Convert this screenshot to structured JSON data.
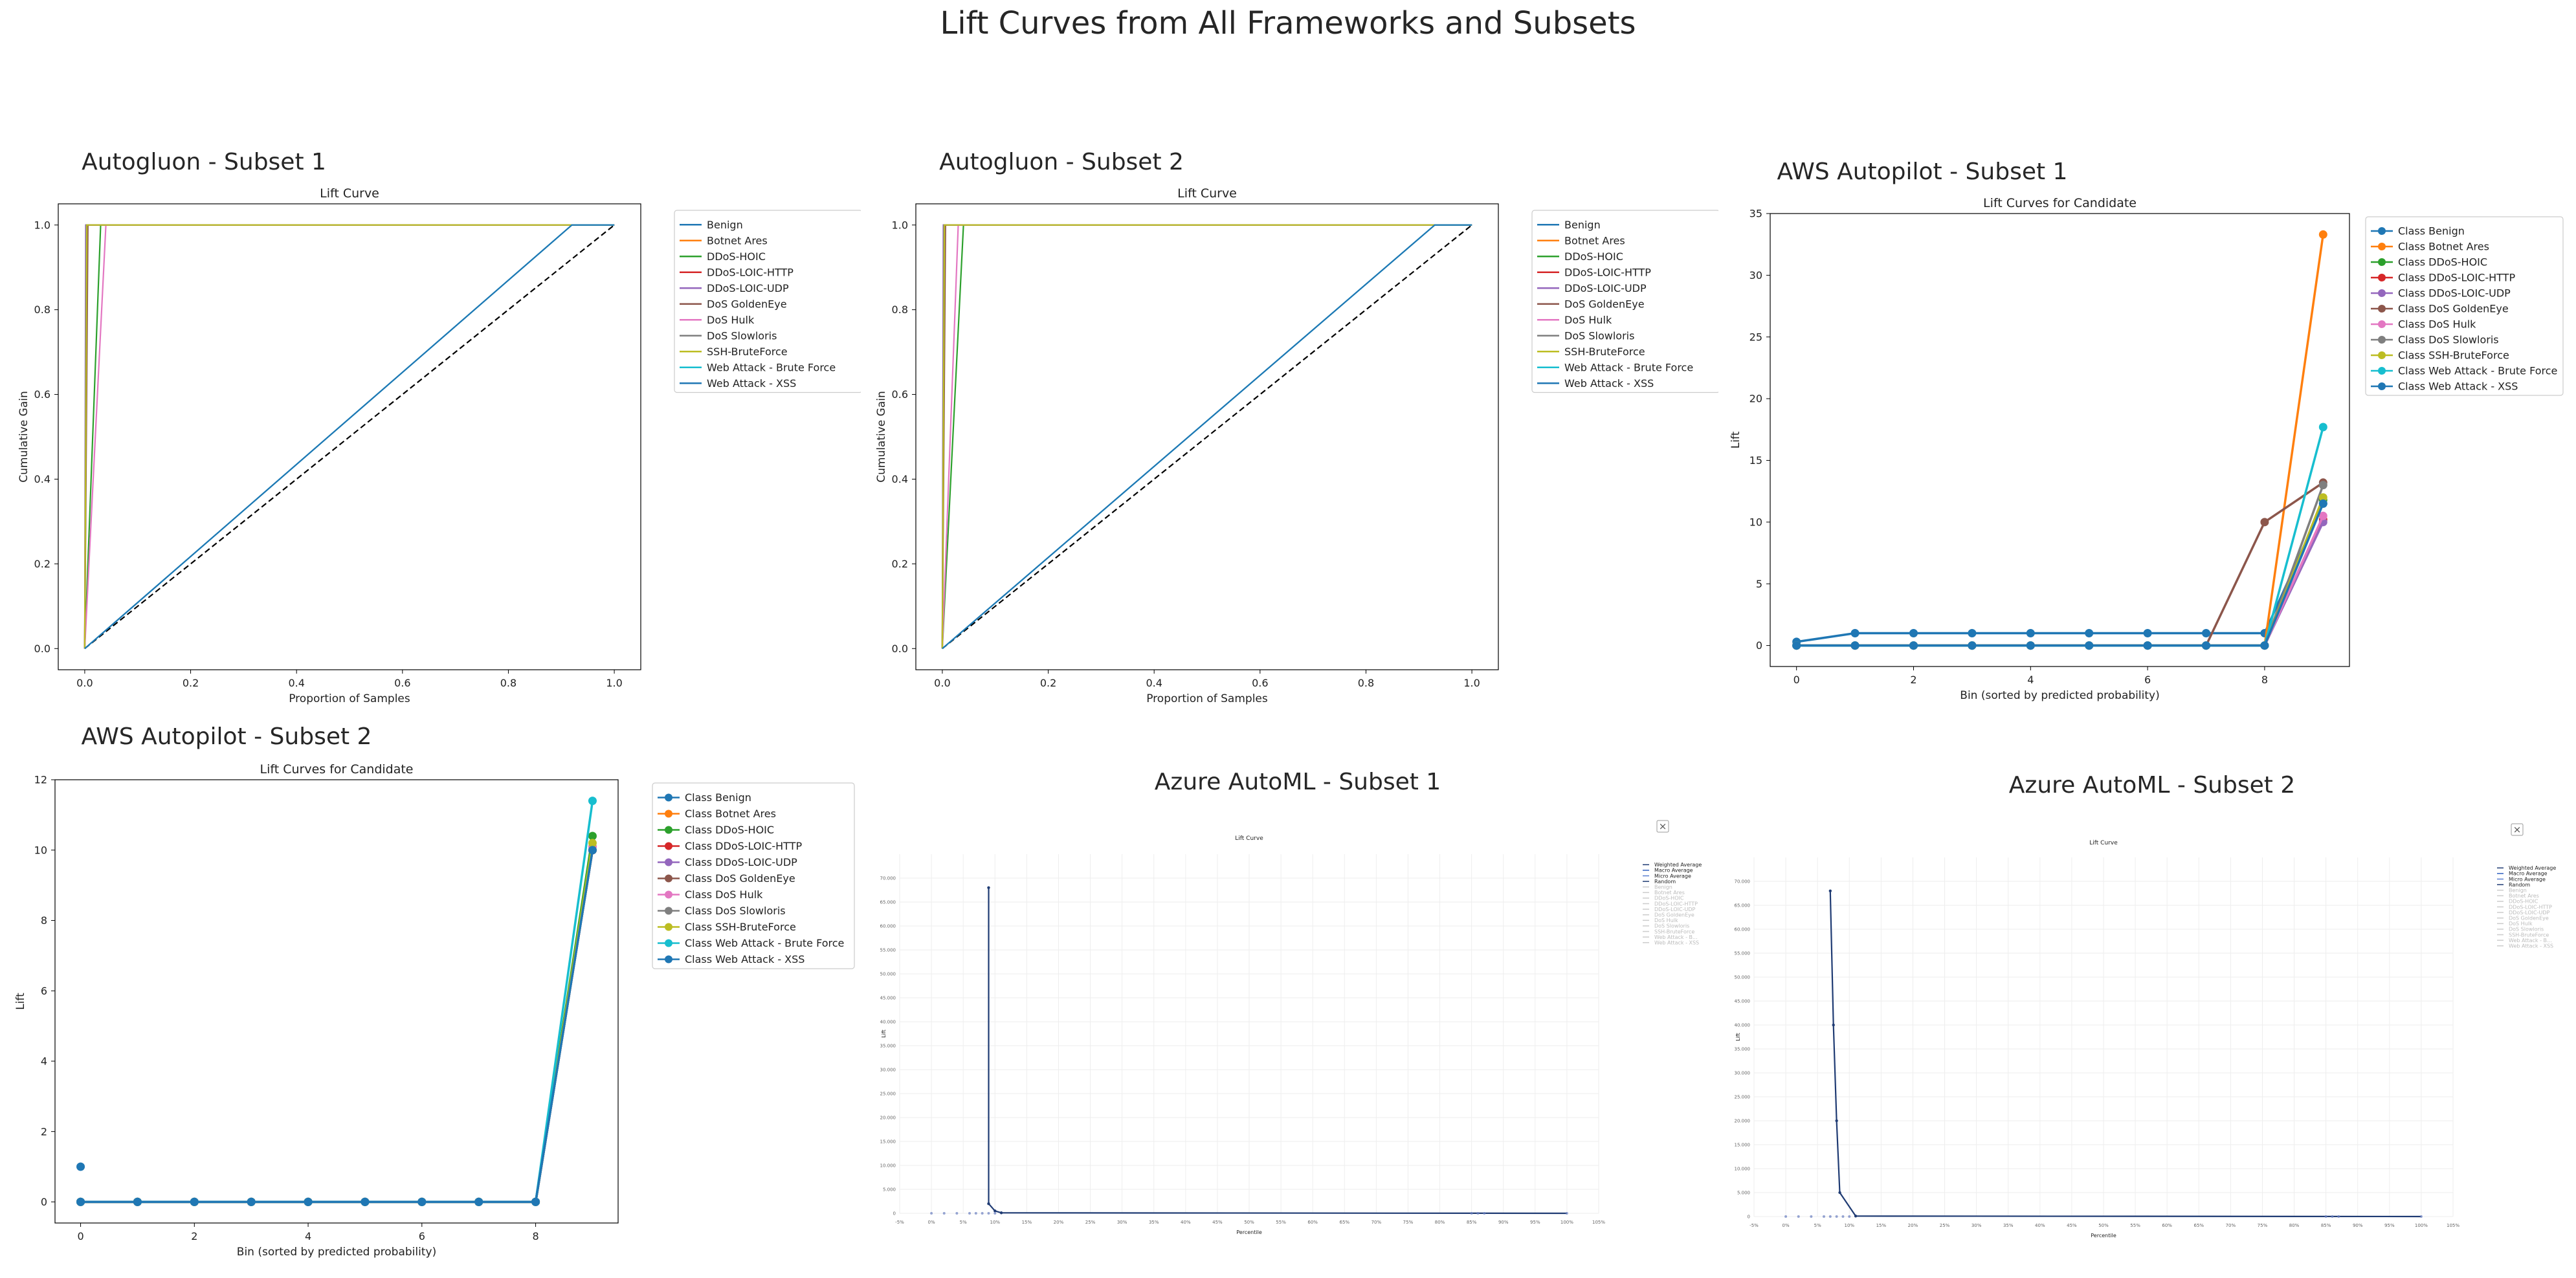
{
  "figure_title": "Lift Curves from All Frameworks and Subsets",
  "colors": {
    "benign": "#1f77b4",
    "botnet": "#ff7f0e",
    "hoic": "#2ca02c",
    "loic_http": "#d62728",
    "loic_udp": "#9467bd",
    "goldeneye": "#8c564b",
    "hulk": "#e377c2",
    "slowloris": "#7f7f7f",
    "ssh": "#bcbd22",
    "brute": "#17becf",
    "xss": "#1f77b4"
  },
  "chart_data": [
    {
      "panel_title": "Autogluon - Subset 1",
      "type": "line",
      "title": "Lift Curve",
      "xlabel": "Proportion of Samples",
      "ylabel": "Cumulative Gain",
      "xlim": [
        -0.05,
        1.05
      ],
      "ylim": [
        -0.05,
        1.05
      ],
      "xticks": [
        "0.0",
        "0.2",
        "0.4",
        "0.6",
        "0.8",
        "1.0"
      ],
      "yticks": [
        "0.0",
        "0.2",
        "0.4",
        "0.6",
        "0.8",
        "1.0"
      ],
      "legend": "upper-right-outside",
      "series": [
        {
          "name": "Benign",
          "color": "#1f77b4",
          "points": [
            [
              0,
              0
            ],
            [
              0.005,
              1
            ],
            [
              1,
              1
            ]
          ]
        },
        {
          "name": "Botnet Ares",
          "color": "#ff7f0e",
          "points": [
            [
              0,
              0
            ],
            [
              0.003,
              1
            ],
            [
              1,
              1
            ]
          ]
        },
        {
          "name": "DDoS-HOIC",
          "color": "#2ca02c",
          "points": [
            [
              0,
              0
            ],
            [
              0.03,
              1
            ],
            [
              1,
              1
            ]
          ]
        },
        {
          "name": "DDoS-LOIC-HTTP",
          "color": "#d62728",
          "points": [
            [
              0,
              0
            ],
            [
              0.004,
              1
            ],
            [
              1,
              1
            ]
          ]
        },
        {
          "name": "DDoS-LOIC-UDP",
          "color": "#9467bd",
          "points": [
            [
              0,
              0
            ],
            [
              0.002,
              1
            ],
            [
              1,
              1
            ]
          ]
        },
        {
          "name": "DoS GoldenEye",
          "color": "#8c564b",
          "points": [
            [
              0,
              0
            ],
            [
              0.006,
              1
            ],
            [
              1,
              1
            ]
          ]
        },
        {
          "name": "DoS Hulk",
          "color": "#e377c2",
          "points": [
            [
              0,
              0
            ],
            [
              0.04,
              1
            ],
            [
              1,
              1
            ]
          ]
        },
        {
          "name": "DoS Slowloris",
          "color": "#7f7f7f",
          "points": [
            [
              0,
              0
            ],
            [
              0.003,
              1
            ],
            [
              1,
              1
            ]
          ]
        },
        {
          "name": "SSH-BruteForce",
          "color": "#bcbd22",
          "points": [
            [
              0,
              0
            ],
            [
              0.004,
              1
            ],
            [
              1,
              1
            ]
          ]
        },
        {
          "name": "Web Attack - Brute Force",
          "color": "#17becf",
          "points": [
            [
              0,
              0
            ],
            [
              0.92,
              1
            ],
            [
              1,
              1
            ]
          ]
        },
        {
          "name": "Web Attack - XSS",
          "color": "#1f77b4",
          "points": [
            [
              0,
              0
            ],
            [
              0.92,
              1
            ],
            [
              1,
              1
            ]
          ]
        }
      ],
      "diagonal": true
    },
    {
      "panel_title": "Autogluon - Subset 2",
      "type": "line",
      "title": "Lift Curve",
      "xlabel": "Proportion of Samples",
      "ylabel": "Cumulative Gain",
      "xlim": [
        -0.05,
        1.05
      ],
      "ylim": [
        -0.05,
        1.05
      ],
      "xticks": [
        "0.0",
        "0.2",
        "0.4",
        "0.6",
        "0.8",
        "1.0"
      ],
      "yticks": [
        "0.0",
        "0.2",
        "0.4",
        "0.6",
        "0.8",
        "1.0"
      ],
      "legend": "upper-right-outside",
      "series": [
        {
          "name": "Benign",
          "color": "#1f77b4",
          "points": [
            [
              0,
              0
            ],
            [
              0.005,
              1
            ],
            [
              1,
              1
            ]
          ]
        },
        {
          "name": "Botnet Ares",
          "color": "#ff7f0e",
          "points": [
            [
              0,
              0
            ],
            [
              0.003,
              1
            ],
            [
              1,
              1
            ]
          ]
        },
        {
          "name": "DDoS-HOIC",
          "color": "#2ca02c",
          "points": [
            [
              0,
              0
            ],
            [
              0.04,
              1
            ],
            [
              1,
              1
            ]
          ]
        },
        {
          "name": "DDoS-LOIC-HTTP",
          "color": "#d62728",
          "points": [
            [
              0,
              0
            ],
            [
              0.004,
              1
            ],
            [
              1,
              1
            ]
          ]
        },
        {
          "name": "DDoS-LOIC-UDP",
          "color": "#9467bd",
          "points": [
            [
              0,
              0
            ],
            [
              0.002,
              1
            ],
            [
              1,
              1
            ]
          ]
        },
        {
          "name": "DoS GoldenEye",
          "color": "#8c564b",
          "points": [
            [
              0,
              0
            ],
            [
              0.006,
              1
            ],
            [
              1,
              1
            ]
          ]
        },
        {
          "name": "DoS Hulk",
          "color": "#e377c2",
          "points": [
            [
              0,
              0
            ],
            [
              0.03,
              1
            ],
            [
              1,
              1
            ]
          ]
        },
        {
          "name": "DoS Slowloris",
          "color": "#7f7f7f",
          "points": [
            [
              0,
              0
            ],
            [
              0.003,
              1
            ],
            [
              1,
              1
            ]
          ]
        },
        {
          "name": "SSH-BruteForce",
          "color": "#bcbd22",
          "points": [
            [
              0,
              0
            ],
            [
              0.004,
              1
            ],
            [
              1,
              1
            ]
          ]
        },
        {
          "name": "Web Attack - Brute Force",
          "color": "#17becf",
          "points": [
            [
              0,
              0
            ],
            [
              0.93,
              1
            ],
            [
              1,
              1
            ]
          ]
        },
        {
          "name": "Web Attack - XSS",
          "color": "#1f77b4",
          "points": [
            [
              0,
              0
            ],
            [
              0.93,
              1
            ],
            [
              1,
              1
            ]
          ]
        }
      ],
      "diagonal": true
    },
    {
      "panel_title": "AWS Autopilot - Subset 1",
      "type": "line",
      "title": "Lift Curves for Candidate",
      "xlabel": "Bin (sorted by predicted probability)",
      "ylabel": "Lift",
      "xlim": [
        -0.45,
        9.45
      ],
      "ylim": [
        -1.7,
        35
      ],
      "xticks": [
        "0",
        "2",
        "4",
        "6",
        "8"
      ],
      "yticks": [
        "0",
        "5",
        "10",
        "15",
        "20",
        "25",
        "30",
        "35"
      ],
      "legend": "upper-right-outside",
      "markers": true,
      "series": [
        {
          "name": "Class Benign",
          "color": "#1f77b4",
          "values": [
            0.3,
            1,
            1,
            1,
            1,
            1,
            1,
            1,
            1,
            11.5
          ]
        },
        {
          "name": "Class Botnet Ares",
          "color": "#ff7f0e",
          "values": [
            0,
            0,
            0,
            0,
            0,
            0,
            0,
            0,
            0,
            33.3
          ]
        },
        {
          "name": "Class DDoS-HOIC",
          "color": "#2ca02c",
          "values": [
            0,
            0,
            0,
            0,
            0,
            0,
            0,
            0,
            0,
            11.8
          ]
        },
        {
          "name": "Class DDoS-LOIC-HTTP",
          "color": "#d62728",
          "values": [
            0,
            0,
            0,
            0,
            0,
            0,
            0,
            0,
            0,
            10.2
          ]
        },
        {
          "name": "Class DDoS-LOIC-UDP",
          "color": "#9467bd",
          "values": [
            0,
            0,
            0,
            0,
            0,
            0,
            0,
            0,
            0,
            10
          ]
        },
        {
          "name": "Class DoS GoldenEye",
          "color": "#8c564b",
          "values": [
            0,
            0,
            0,
            0,
            0,
            0,
            0,
            0,
            10,
            13.2
          ]
        },
        {
          "name": "Class DoS Hulk",
          "color": "#e377c2",
          "values": [
            0,
            0,
            0,
            0,
            0,
            0,
            0,
            0,
            0,
            10.5
          ]
        },
        {
          "name": "Class DoS Slowloris",
          "color": "#7f7f7f",
          "values": [
            0,
            0,
            0,
            0,
            0,
            0,
            0,
            0,
            0,
            13
          ]
        },
        {
          "name": "Class SSH-BruteForce",
          "color": "#bcbd22",
          "values": [
            0,
            0,
            0,
            0,
            0,
            0,
            0,
            0,
            0,
            12
          ]
        },
        {
          "name": "Class Web Attack - Brute Force",
          "color": "#17becf",
          "values": [
            0,
            0,
            0,
            0,
            0,
            0,
            0,
            0,
            0,
            17.7
          ]
        },
        {
          "name": "Class Web Attack - XSS",
          "color": "#1f77b4",
          "values": [
            0,
            0,
            0,
            0,
            0,
            0,
            0,
            0,
            0,
            11.5
          ]
        }
      ]
    },
    {
      "panel_title": "AWS Autopilot - Subset 2",
      "type": "line",
      "title": "Lift Curves for Candidate",
      "xlabel": "Bin (sorted by predicted probability)",
      "ylabel": "Lift",
      "xlim": [
        -0.45,
        9.45
      ],
      "ylim": [
        -0.6,
        12
      ],
      "xticks": [
        "0",
        "2",
        "4",
        "6",
        "8"
      ],
      "yticks": [
        "0",
        "2",
        "4",
        "6",
        "8",
        "10",
        "12"
      ],
      "legend": "upper-right-outside",
      "markers": true,
      "series": [
        {
          "name": "Class Benign",
          "color": "#1f77b4",
          "values": [
            1,
            null,
            null,
            null,
            null,
            null,
            null,
            null,
            null,
            null
          ]
        },
        {
          "name": "Class Botnet Ares",
          "color": "#ff7f0e",
          "values": [
            0,
            0,
            0,
            0,
            0,
            0,
            0,
            0,
            0,
            10.1
          ]
        },
        {
          "name": "Class DDoS-HOIC",
          "color": "#2ca02c",
          "values": [
            0,
            0,
            0,
            0,
            0,
            0,
            0,
            0,
            0,
            10.4
          ]
        },
        {
          "name": "Class DDoS-LOIC-HTTP",
          "color": "#d62728",
          "values": [
            0,
            0,
            0,
            0,
            0,
            0,
            0,
            0,
            0,
            10
          ]
        },
        {
          "name": "Class DDoS-LOIC-UDP",
          "color": "#9467bd",
          "values": [
            0,
            0,
            0,
            0,
            0,
            0,
            0,
            0,
            0,
            10
          ]
        },
        {
          "name": "Class DoS GoldenEye",
          "color": "#8c564b",
          "values": [
            0,
            0,
            0,
            0,
            0,
            0,
            0,
            0,
            0,
            10
          ]
        },
        {
          "name": "Class DoS Hulk",
          "color": "#e377c2",
          "values": [
            0,
            0,
            0,
            0,
            0,
            0,
            0,
            0,
            0,
            10.1
          ]
        },
        {
          "name": "Class DoS Slowloris",
          "color": "#7f7f7f",
          "values": [
            0,
            0,
            0,
            0,
            0,
            0,
            0,
            0,
            0,
            10
          ]
        },
        {
          "name": "Class SSH-BruteForce",
          "color": "#bcbd22",
          "values": [
            0,
            0,
            0,
            0,
            0,
            0,
            0,
            0,
            0,
            10.2
          ]
        },
        {
          "name": "Class Web Attack - Brute Force",
          "color": "#17becf",
          "values": [
            0,
            0,
            0,
            0,
            0,
            0,
            0,
            0,
            0,
            11.4
          ]
        },
        {
          "name": "Class Web Attack - XSS",
          "color": "#1f77b4",
          "values": [
            0,
            0,
            0,
            0,
            0,
            0,
            0,
            0,
            0,
            10
          ]
        }
      ]
    },
    {
      "panel_title": "Azure AutoML - Subset 1",
      "type": "line",
      "title": "Lift Curve",
      "xlabel": "Percentile",
      "ylabel": "Lift",
      "xlim": [
        -5,
        105
      ],
      "ylim": [
        0,
        75
      ],
      "xticks": [
        "-5%",
        "0%",
        "5%",
        "10%",
        "15%",
        "20%",
        "25%",
        "30%",
        "35%",
        "40%",
        "45%",
        "50%",
        "55%",
        "60%",
        "65%",
        "70%",
        "75%",
        "80%",
        "85%",
        "90%",
        "95%",
        "100%",
        "105%"
      ],
      "yticks": [
        "0",
        "5.000",
        "10.000",
        "15.000",
        "20.000",
        "25.000",
        "30.000",
        "35.000",
        "40.000",
        "45.000",
        "50.000",
        "55.000",
        "60.000",
        "65.000",
        "70.000"
      ],
      "legend_entries": [
        "Weighted Average",
        "Macro Average",
        "Micro Average",
        "Random",
        "Benign",
        "Botnet Ares",
        "DDoS-HOIC",
        "DDoS-LOIC-HTTP",
        "DDoS-LOIC-UDP",
        "DoS GoldenEye",
        "DoS Hulk",
        "DoS Slowloris",
        "SSH-BruteForce",
        "Web Attack - B...",
        "Web Attack - XSS"
      ],
      "close_button": "×",
      "series": [
        {
          "name": "Weighted Average",
          "color": "#1f3b73",
          "points": [
            [
              9,
              68
            ],
            [
              9,
              2
            ],
            [
              10,
              0.5
            ],
            [
              11,
              0.1
            ],
            [
              100,
              0
            ]
          ]
        }
      ]
    },
    {
      "panel_title": "Azure AutoML - Subset 2",
      "type": "line",
      "title": "Lift Curve",
      "xlabel": "Percentile",
      "ylabel": "Lift",
      "xlim": [
        -5,
        105
      ],
      "ylim": [
        0,
        75
      ],
      "xticks": [
        "-5%",
        "0%",
        "5%",
        "10%",
        "15%",
        "20%",
        "25%",
        "30%",
        "35%",
        "40%",
        "45%",
        "50%",
        "55%",
        "60%",
        "65%",
        "70%",
        "75%",
        "80%",
        "85%",
        "90%",
        "95%",
        "100%",
        "105%"
      ],
      "yticks": [
        "0",
        "5.000",
        "10.000",
        "15.000",
        "20.000",
        "25.000",
        "30.000",
        "35.000",
        "40.000",
        "45.000",
        "50.000",
        "55.000",
        "60.000",
        "65.000",
        "70.000"
      ],
      "legend_entries": [
        "Weighted Average",
        "Macro Average",
        "Micro Average",
        "Random",
        "Benign",
        "Botnet Ares",
        "DDoS-HOIC",
        "DDoS-LOIC-HTTP",
        "DDoS-LOIC-UDP",
        "DoS GoldenEye",
        "DoS Hulk",
        "DoS Slowloris",
        "SSH-BruteForce",
        "Web Attack - B...",
        "Web Attack - XSS"
      ],
      "close_button": "×",
      "series": [
        {
          "name": "Weighted Average",
          "color": "#1f3b73",
          "points": [
            [
              7,
              68
            ],
            [
              7.5,
              40
            ],
            [
              8,
              20
            ],
            [
              8.5,
              5
            ],
            [
              11,
              0.1
            ],
            [
              100,
              0
            ]
          ]
        }
      ]
    }
  ]
}
